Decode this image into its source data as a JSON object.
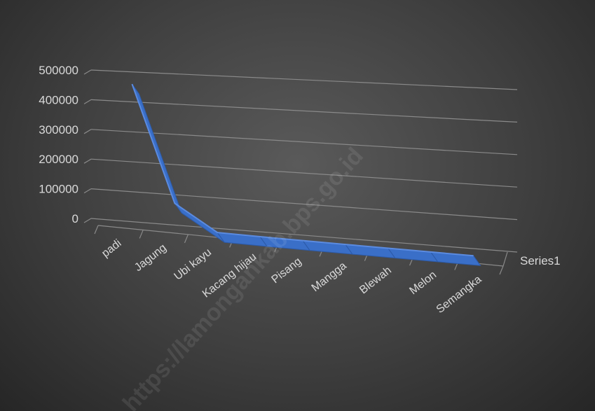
{
  "chart_data": {
    "type": "line",
    "categories": [
      "padi",
      "Jagung",
      "Ubi kayu",
      "Kacang hijau",
      "Pisang",
      "Mangga",
      "Blewah",
      "Melon",
      "Semangka"
    ],
    "series": [
      {
        "name": "Series1",
        "values": [
          480000,
          90000,
          3000,
          1500,
          1000,
          600,
          300,
          200,
          150
        ]
      }
    ],
    "y_ticks": [
      "0",
      "100000",
      "200000",
      "300000",
      "400000",
      "500000"
    ],
    "ylim": [
      0,
      500000
    ],
    "legend": "right",
    "grid": true,
    "view": "3d",
    "watermark": "https://lamongankab.bps.go.id",
    "colors": {
      "series": "#3a6fc8",
      "grid": "#8a8a8a",
      "text": "#d9d9d9"
    }
  }
}
